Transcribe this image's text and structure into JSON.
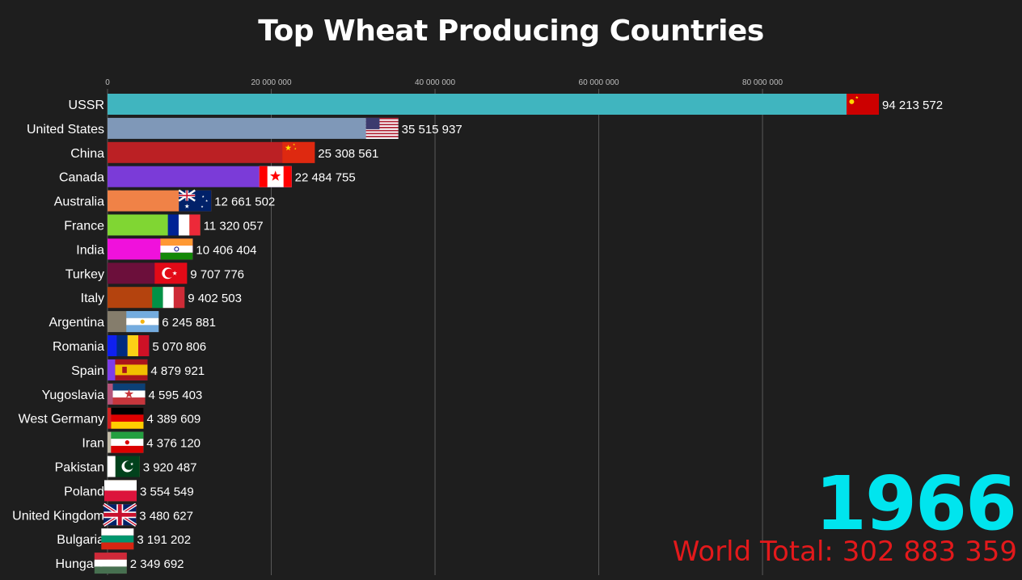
{
  "title": "Top Wheat Producing Countries",
  "year": "1966",
  "world_total_label": "World Total:",
  "world_total_value": "302 883 359",
  "chart_data": {
    "type": "bar",
    "orientation": "horizontal",
    "title": "Top Wheat Producing Countries",
    "xlim": [
      0,
      94213572
    ],
    "x_ticks": [
      0,
      20000000,
      40000000,
      60000000,
      80000000
    ],
    "x_tick_labels": [
      "0",
      "20 000 000",
      "40 000 000",
      "60 000 000",
      "80 000 000"
    ],
    "grid": true,
    "categories": [
      "USSR",
      "United States",
      "China",
      "Canada",
      "Australia",
      "France",
      "India",
      "Turkey",
      "Italy",
      "Argentina",
      "Romania",
      "Spain",
      "Yugoslavia",
      "West Germany",
      "Iran",
      "Pakistan",
      "Poland",
      "United Kingdom",
      "Bulgaria",
      "Hungary"
    ],
    "values": [
      94213572,
      35515937,
      25308561,
      22484755,
      12661502,
      11320057,
      10406404,
      9707776,
      9402503,
      6245881,
      5070806,
      4879921,
      4595403,
      4389609,
      4376120,
      3920487,
      3554549,
      3480627,
      3191202,
      2349692
    ],
    "value_labels": [
      "94 213 572",
      "35 515 937",
      "25 308 561",
      "22 484 755",
      "12 661 502",
      "11 320 057",
      "10 406 404",
      "9 707 776",
      "9 402 503",
      "6 245 881",
      "5 070 806",
      "4 879 921",
      "4 595 403",
      "4 389 609",
      "4 376 120",
      "3 920 487",
      "3 554 549",
      "3 480 627",
      "3 191 202",
      "2 349 692"
    ],
    "colors": [
      "#40b5bf",
      "#7f98b8",
      "#bb2024",
      "#7b3bd8",
      "#f08247",
      "#80d633",
      "#f011dc",
      "#6c0f3b",
      "#b4430e",
      "#857d6c",
      "#0f20ef",
      "#7c3de9",
      "#b4547a",
      "#cf2222",
      "#c3bca8",
      "#aab34f",
      "#f3ad2c",
      "#e45b5d",
      "#7a1353",
      "#6c3523"
    ],
    "flags": [
      "flag-ussr",
      "flag-usa",
      "flag-china",
      "flag-canada",
      "flag-australia",
      "flag-france",
      "flag-india",
      "flag-turkey",
      "flag-italy",
      "flag-argentina",
      "flag-romania",
      "flag-spain",
      "flag-yugoslavia",
      "flag-west-germany",
      "flag-iran",
      "flag-pakistan",
      "flag-poland",
      "flag-uk",
      "flag-bulgaria",
      "flag-hungary"
    ]
  }
}
